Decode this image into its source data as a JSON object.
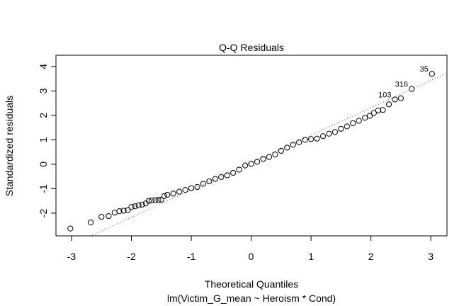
{
  "chart_data": {
    "type": "scatter",
    "title": "Q-Q Residuals",
    "xlabel": "Theoretical Quantiles",
    "subtitle": "lm(Victim_G_mean ~ Heroism * Cond)",
    "ylabel": "Standardized residuals",
    "xlim": [
      -3.26,
      3.27
    ],
    "ylim": [
      -2.93,
      4.46
    ],
    "xticks": [
      -3,
      -2,
      -1,
      0,
      1,
      2,
      3
    ],
    "yticks": [
      -2,
      -1,
      0,
      1,
      2,
      3,
      4
    ],
    "x": [
      -3.02,
      -2.68,
      -2.5,
      -2.38,
      -2.28,
      -2.2,
      -2.13,
      -2.06,
      -2.0,
      -1.94,
      -1.88,
      -1.82,
      -1.76,
      -1.71,
      -1.66,
      -1.6,
      -1.55,
      -1.5,
      -1.45,
      -1.4,
      -1.3,
      -1.2,
      -1.1,
      -1.0,
      -0.9,
      -0.8,
      -0.7,
      -0.6,
      -0.5,
      -0.4,
      -0.3,
      -0.2,
      -0.1,
      0,
      0.1,
      0.2,
      0.3,
      0.4,
      0.5,
      0.6,
      0.7,
      0.8,
      0.9,
      1.0,
      1.1,
      1.2,
      1.3,
      1.4,
      1.5,
      1.6,
      1.7,
      1.8,
      1.9,
      1.98,
      2.05,
      2.12,
      2.2,
      2.3,
      2.4,
      2.5,
      2.68,
      3.02
    ],
    "values": [
      -2.63,
      -2.38,
      -2.15,
      -2.12,
      -1.98,
      -1.92,
      -1.9,
      -1.88,
      -1.75,
      -1.72,
      -1.68,
      -1.65,
      -1.6,
      -1.5,
      -1.48,
      -1.47,
      -1.46,
      -1.45,
      -1.3,
      -1.25,
      -1.2,
      -1.12,
      -1.05,
      -0.98,
      -0.93,
      -0.8,
      -0.7,
      -0.6,
      -0.52,
      -0.45,
      -0.35,
      -0.22,
      -0.05,
      0.02,
      0.1,
      0.22,
      0.3,
      0.4,
      0.55,
      0.68,
      0.8,
      0.9,
      1.0,
      1.03,
      1.05,
      1.15,
      1.25,
      1.32,
      1.45,
      1.55,
      1.68,
      1.78,
      1.9,
      1.98,
      2.1,
      2.2,
      2.22,
      2.45,
      2.65,
      2.7,
      3.08,
      3.7
    ],
    "reference_line": {
      "intercept": 0.07,
      "slope": 1.12
    },
    "point_labels": [
      {
        "text": "103",
        "point": 58
      },
      {
        "text": "316",
        "point": 60
      },
      {
        "text": "35",
        "point": 61
      }
    ]
  }
}
